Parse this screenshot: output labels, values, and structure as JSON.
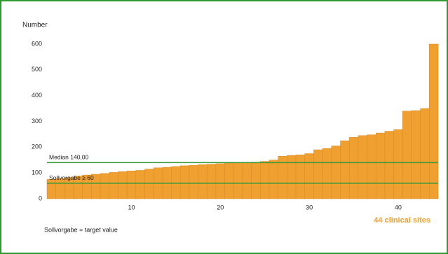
{
  "chart_data": {
    "type": "bar",
    "y_label": "Number",
    "x": [
      1,
      2,
      3,
      4,
      5,
      6,
      7,
      8,
      9,
      10,
      11,
      12,
      13,
      14,
      15,
      16,
      17,
      18,
      19,
      20,
      21,
      22,
      23,
      24,
      25,
      26,
      27,
      28,
      29,
      30,
      31,
      32,
      33,
      34,
      35,
      36,
      37,
      38,
      39,
      40,
      41,
      42,
      43,
      44
    ],
    "values": [
      75,
      78,
      82,
      88,
      92,
      95,
      98,
      102,
      105,
      108,
      110,
      115,
      120,
      122,
      125,
      128,
      130,
      132,
      134,
      136,
      138,
      140,
      140,
      142,
      145,
      150,
      165,
      168,
      170,
      175,
      190,
      195,
      205,
      225,
      238,
      245,
      248,
      255,
      262,
      268,
      340,
      342,
      350,
      600
    ],
    "color": "#f0a030",
    "xlim": [
      0.5,
      44.5
    ],
    "xticks": [
      10,
      20,
      30,
      40
    ],
    "ylim": [
      0,
      600
    ],
    "yticks": [
      0,
      100,
      200,
      300,
      400,
      500,
      600
    ],
    "reference_lines": [
      {
        "label": "Median 140,00",
        "value": 140,
        "color": "#3a9a3a"
      },
      {
        "label": "Sollvorgabe ≥ 60",
        "value": 60,
        "color": "#3a9a3a"
      }
    ],
    "annotation": "44 clinical sites",
    "annotation_color": "#f0a030",
    "footnote": "Sollvorgabe = target value"
  }
}
